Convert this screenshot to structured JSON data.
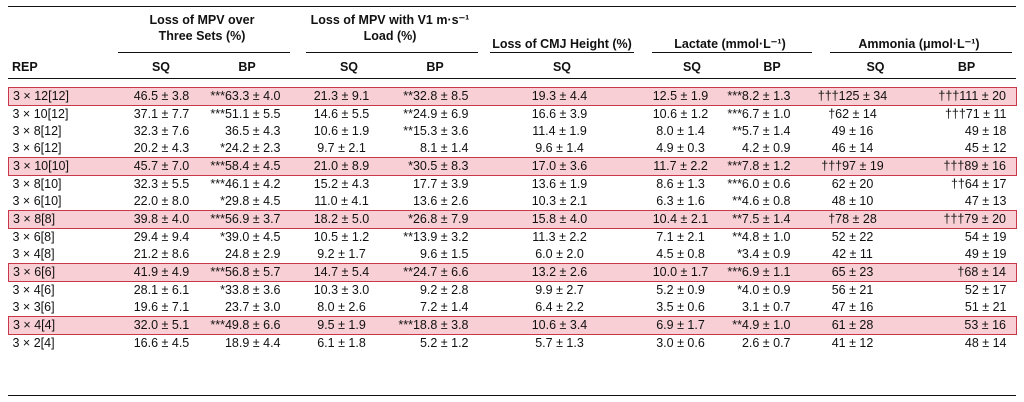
{
  "header": {
    "col_rep": "REP",
    "g_mpv_line1": "Loss of MPV over",
    "g_mpv_line2": "Three Sets (%)",
    "g_v1_line1": "Loss of MPV with V1 m·s⁻¹",
    "g_v1_line2": "Load (%)",
    "g_cmj": "Loss of CMJ Height (%)",
    "g_lactate": "Lactate (mmol·L⁻¹)",
    "g_ammonia": "Ammonia (μmol·L⁻¹)",
    "sub_sq": "SQ",
    "sub_bp": "BP"
  },
  "rows": [
    {
      "rep": "3 × 12[12]",
      "hl": true,
      "c": [
        "46.5 ± 3.8",
        "***63.3 ± 4.0",
        "21.3 ± 9.1",
        "**32.8 ± 8.5",
        "19.3 ± 4.4",
        "12.5 ± 1.9",
        "***8.2 ± 1.3",
        "†††125 ± 34",
        "†††111 ± 20"
      ]
    },
    {
      "rep": "3 × 10[12]",
      "hl": false,
      "c": [
        "37.1 ± 7.7",
        "***51.1 ± 5.5",
        "14.6 ± 5.5",
        "**24.9 ± 6.9",
        "16.6 ± 3.9",
        "10.6 ± 1.2",
        "***6.7 ± 1.0",
        "†62 ± 14",
        "†††71 ± 11"
      ]
    },
    {
      "rep": "3 × 8[12]",
      "hl": false,
      "c": [
        "32.3 ± 7.6",
        "36.5 ± 4.3",
        "10.6 ± 1.9",
        "**15.3 ± 3.6",
        "11.4 ± 1.9",
        "8.0 ± 1.4",
        "**5.7 ± 1.4",
        "49 ± 16",
        "49 ± 18"
      ]
    },
    {
      "rep": "3 × 6[12]",
      "hl": false,
      "c": [
        "20.2 ± 4.3",
        "*24.2 ± 2.3",
        "9.7 ± 2.1",
        "8.1 ± 1.4",
        "9.6 ± 1.4",
        "4.9 ± 0.3",
        "4.2 ± 0.9",
        "46 ± 14",
        "45 ± 12"
      ]
    },
    {
      "rep": "3 × 10[10]",
      "hl": true,
      "c": [
        "45.7 ± 7.0",
        "***58.4 ± 4.5",
        "21.0 ± 8.9",
        "*30.5 ± 8.3",
        "17.0 ± 3.6",
        "11.7 ± 2.2",
        "***7.8 ± 1.2",
        "†††97 ± 19",
        "†††89 ± 16"
      ]
    },
    {
      "rep": "3 × 8[10]",
      "hl": false,
      "c": [
        "32.3 ± 5.5",
        "***46.1 ± 4.2",
        "15.2 ± 4.3",
        "17.7 ± 3.9",
        "13.6 ± 1.9",
        "8.6 ± 1.3",
        "***6.0 ± 0.6",
        "62 ± 20",
        "††64 ± 17"
      ]
    },
    {
      "rep": "3 × 6[10]",
      "hl": false,
      "c": [
        "22.0 ± 8.0",
        "*29.8 ± 4.5",
        "11.0 ± 4.1",
        "13.6 ± 2.6",
        "10.3 ± 2.1",
        "6.3 ± 1.6",
        "**4.6 ± 0.8",
        "48 ± 10",
        "47 ± 13"
      ]
    },
    {
      "rep": "3 × 8[8]",
      "hl": true,
      "c": [
        "39.8 ± 4.0",
        "***56.9 ± 3.7",
        "18.2 ± 5.0",
        "*26.8 ± 7.9",
        "15.8 ± 4.0",
        "10.4 ± 2.1",
        "**7.5 ± 1.4",
        "†78 ± 28",
        "†††79 ± 20"
      ]
    },
    {
      "rep": "3 × 6[8]",
      "hl": false,
      "c": [
        "29.4 ± 9.4",
        "*39.0 ± 4.5",
        "10.5 ± 1.2",
        "**13.9 ± 3.2",
        "11.3 ± 2.2",
        "7.1 ± 2.1",
        "**4.8 ± 1.0",
        "52 ± 22",
        "54 ± 19"
      ]
    },
    {
      "rep": "3 × 4[8]",
      "hl": false,
      "c": [
        "21.2 ± 8.6",
        "24.8 ± 2.9",
        "9.2 ± 1.7",
        "9.6 ± 1.5",
        "6.0 ± 2.0",
        "4.5 ± 0.8",
        "*3.4 ± 0.9",
        "42 ± 11",
        "49 ± 19"
      ]
    },
    {
      "rep": "3 × 6[6]",
      "hl": true,
      "c": [
        "41.9 ± 4.9",
        "***56.8 ± 5.7",
        "14.7 ± 5.4",
        "**24.7 ± 6.6",
        "13.2 ± 2.6",
        "10.0 ± 1.7",
        "***6.9 ± 1.1",
        "65 ± 23",
        "†68 ± 14"
      ]
    },
    {
      "rep": "3 × 4[6]",
      "hl": false,
      "c": [
        "28.1 ± 6.1",
        "*33.8 ± 3.6",
        "10.3 ± 3.0",
        "9.2 ± 2.8",
        "9.9 ± 2.7",
        "5.2 ± 0.9",
        "*4.0 ± 0.9",
        "56 ± 21",
        "52 ± 17"
      ]
    },
    {
      "rep": "3 × 3[6]",
      "hl": false,
      "c": [
        "19.6 ± 7.1",
        "23.7 ± 3.0",
        "8.0 ± 2.6",
        "7.2 ± 1.4",
        "6.4 ± 2.2",
        "3.5 ± 0.6",
        "3.1 ± 0.7",
        "47 ± 16",
        "51 ± 21"
      ]
    },
    {
      "rep": "3 × 4[4]",
      "hl": true,
      "c": [
        "32.0 ± 5.1",
        "***49.8 ± 6.6",
        "9.5 ± 1.9",
        "***18.8 ± 3.8",
        "10.6 ± 3.4",
        "6.9 ± 1.7",
        "**4.9 ± 1.0",
        "61 ± 28",
        "53 ± 16"
      ]
    },
    {
      "rep": "3 × 2[4]",
      "hl": false,
      "c": [
        "16.6 ± 4.5",
        "18.9 ± 4.4",
        "6.1 ± 1.8",
        "5.2 ± 1.2",
        "5.7 ± 1.3",
        "3.0 ± 0.6",
        "2.6 ± 0.7",
        "41 ± 12",
        "48 ± 14"
      ]
    }
  ]
}
